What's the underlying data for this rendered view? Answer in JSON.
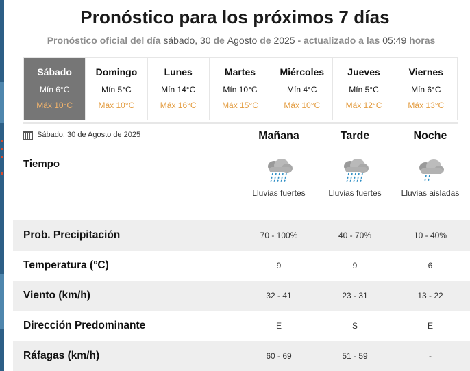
{
  "header": {
    "title": "Pronóstico para los próximos 7 días",
    "subtitle_prefix": "Pronóstico oficial del día",
    "subtitle_weekday": "sábado, 30",
    "subtitle_de1": "de",
    "subtitle_month": "Agosto",
    "subtitle_de2": "de",
    "subtitle_year": "2025",
    "subtitle_updated": "- actualizado a las",
    "subtitle_time": "05:49",
    "subtitle_suffix": "horas"
  },
  "days": [
    {
      "name": "Sábado",
      "min": "Mín 6°C",
      "max": "Máx 10°C",
      "selected": true
    },
    {
      "name": "Domingo",
      "min": "Mín 5°C",
      "max": "Máx 10°C"
    },
    {
      "name": "Lunes",
      "min": "Mín 14°C",
      "max": "Máx 16°C"
    },
    {
      "name": "Martes",
      "min": "Mín 10°C",
      "max": "Máx 15°C"
    },
    {
      "name": "Miércoles",
      "min": "Mín 4°C",
      "max": "Máx 10°C"
    },
    {
      "name": "Jueves",
      "min": "Mín 5°C",
      "max": "Máx 12°C"
    },
    {
      "name": "Viernes",
      "min": "Mín 6°C",
      "max": "Máx 13°C"
    }
  ],
  "detail": {
    "date": "Sábado, 30 de Agosto de 2025",
    "columns": [
      "Mañana",
      "Tarde",
      "Noche"
    ],
    "tiempo_label": "Tiempo",
    "weather": [
      {
        "desc": "Lluvias fuertes",
        "icon": "heavy-rain-icon"
      },
      {
        "desc": "Lluvias fuertes",
        "icon": "heavy-rain-icon"
      },
      {
        "desc": "Lluvias aisladas",
        "icon": "isolated-rain-icon"
      }
    ],
    "rows": [
      {
        "label": "Prob. Precipitación",
        "values": [
          "70 - 100%",
          "40 - 70%",
          "10 - 40%"
        ]
      },
      {
        "label": "Temperatura (°C)",
        "values": [
          "9",
          "9",
          "6"
        ]
      },
      {
        "label": "Viento (km/h)",
        "values": [
          "32 - 41",
          "23 - 31",
          "13 - 22"
        ]
      },
      {
        "label": "Dirección Predominante",
        "values": [
          "E",
          "S",
          "E"
        ]
      },
      {
        "label": "Ráfagas (km/h)",
        "values": [
          "60 - 69",
          "51 - 59",
          "-"
        ]
      }
    ]
  },
  "colors": {
    "selected_day_bg": "#767676",
    "max_temp": "#e39b3e",
    "row_shade": "#eeeeee",
    "rain": "#2f8fc5"
  }
}
